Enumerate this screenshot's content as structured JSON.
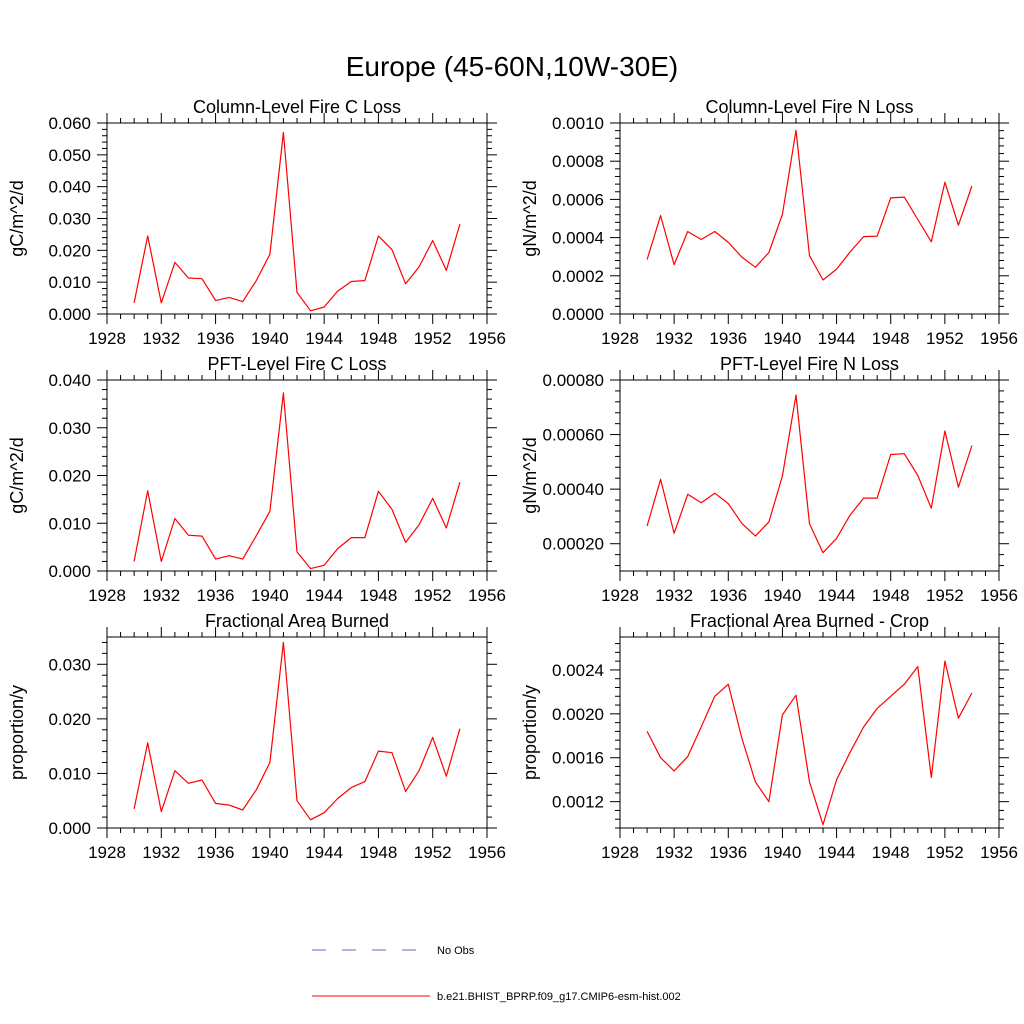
{
  "title": "Europe (45-60N,10W-30E)",
  "chart_data": [
    {
      "type": "line",
      "title": "Column-Level Fire C Loss",
      "ylabel": "gC/m^2/d",
      "xlabel": "",
      "xlim": [
        1928,
        1956
      ],
      "ylim": [
        0,
        0.06
      ],
      "xticks": [
        1928,
        1932,
        1936,
        1940,
        1944,
        1948,
        1952,
        1956
      ],
      "xtick_labels": [
        "1928",
        "1932",
        "1936",
        "1940",
        "1944",
        "1948",
        "1952",
        "1956"
      ],
      "yticks": [
        0,
        0.01,
        0.02,
        0.03,
        0.04,
        0.05,
        0.06
      ],
      "ytick_labels": [
        "0.000",
        "0.010",
        "0.020",
        "0.030",
        "0.040",
        "0.050",
        "0.060"
      ],
      "x": [
        1930,
        1931,
        1932,
        1933,
        1934,
        1935,
        1936,
        1937,
        1938,
        1939,
        1940,
        1941,
        1942,
        1943,
        1944,
        1945,
        1946,
        1947,
        1948,
        1949,
        1950,
        1951,
        1952,
        1953,
        1954
      ],
      "series": [
        {
          "name": "b.e21.BHIST_BPRP.f09_g17.CMIP6-esm-hist.002",
          "color": "#ff0000",
          "values": [
            0.0035,
            0.0245,
            0.0035,
            0.0162,
            0.0113,
            0.0111,
            0.0042,
            0.0052,
            0.0039,
            0.0105,
            0.0188,
            0.057,
            0.0068,
            0.001,
            0.0022,
            0.0072,
            0.0102,
            0.0105,
            0.0245,
            0.0202,
            0.0095,
            0.0148,
            0.0231,
            0.0137,
            0.0282
          ]
        }
      ]
    },
    {
      "type": "line",
      "title": "Column-Level Fire N Loss",
      "ylabel": "gN/m^2/d",
      "xlabel": "",
      "xlim": [
        1928,
        1956
      ],
      "ylim": [
        0,
        0.001
      ],
      "xticks": [
        1928,
        1932,
        1936,
        1940,
        1944,
        1948,
        1952,
        1956
      ],
      "xtick_labels": [
        "1928",
        "1932",
        "1936",
        "1940",
        "1944",
        "1948",
        "1952",
        "1956"
      ],
      "yticks": [
        0,
        0.0002,
        0.0004,
        0.0006,
        0.0008,
        0.001
      ],
      "ytick_labels": [
        "0.0000",
        "0.0002",
        "0.0004",
        "0.0006",
        "0.0008",
        "0.0010"
      ],
      "x": [
        1930,
        1931,
        1932,
        1933,
        1934,
        1935,
        1936,
        1937,
        1938,
        1939,
        1940,
        1941,
        1942,
        1943,
        1944,
        1945,
        1946,
        1947,
        1948,
        1949,
        1950,
        1951,
        1952,
        1953,
        1954
      ],
      "series": [
        {
          "name": "b.e21.BHIST_BPRP.f09_g17.CMIP6-esm-hist.002",
          "color": "#ff0000",
          "values": [
            0.000285,
            0.000515,
            0.000258,
            0.000432,
            0.00039,
            0.000432,
            0.000375,
            0.000298,
            0.000245,
            0.000322,
            0.000522,
            0.000962,
            0.000305,
            0.000178,
            0.000235,
            0.000325,
            0.000405,
            0.000408,
            0.000608,
            0.000612,
            0.000495,
            0.000378,
            0.00069,
            0.000465,
            0.00067
          ]
        }
      ]
    },
    {
      "type": "line",
      "title": "PFT-Level Fire C Loss",
      "ylabel": "gC/m^2/d",
      "xlabel": "",
      "xlim": [
        1928,
        1956
      ],
      "ylim": [
        0,
        0.04
      ],
      "xticks": [
        1928,
        1932,
        1936,
        1940,
        1944,
        1948,
        1952,
        1956
      ],
      "xtick_labels": [
        "1928",
        "1932",
        "1936",
        "1940",
        "1944",
        "1948",
        "1952",
        "1956"
      ],
      "yticks": [
        0,
        0.01,
        0.02,
        0.03,
        0.04
      ],
      "ytick_labels": [
        "0.000",
        "0.010",
        "0.020",
        "0.030",
        "0.040"
      ],
      "x": [
        1930,
        1931,
        1932,
        1933,
        1934,
        1935,
        1936,
        1937,
        1938,
        1939,
        1940,
        1941,
        1942,
        1943,
        1944,
        1945,
        1946,
        1947,
        1948,
        1949,
        1950,
        1951,
        1952,
        1953,
        1954
      ],
      "series": [
        {
          "name": "b.e21.BHIST_BPRP.f09_g17.CMIP6-esm-hist.002",
          "color": "#ff0000",
          "values": [
            0.002,
            0.0168,
            0.002,
            0.011,
            0.0075,
            0.0073,
            0.0025,
            0.0032,
            0.0025,
            0.0074,
            0.0125,
            0.0373,
            0.004,
            0.0005,
            0.0012,
            0.0047,
            0.007,
            0.007,
            0.0167,
            0.0129,
            0.006,
            0.0097,
            0.0152,
            0.009,
            0.0186
          ]
        }
      ]
    },
    {
      "type": "line",
      "title": "PFT-Level Fire N Loss",
      "ylabel": "gN/m^2/d",
      "xlabel": "",
      "xlim": [
        1928,
        1956
      ],
      "ylim": [
        0.0001,
        0.0008
      ],
      "xticks": [
        1928,
        1932,
        1936,
        1940,
        1944,
        1948,
        1952,
        1956
      ],
      "xtick_labels": [
        "1928",
        "1932",
        "1936",
        "1940",
        "1944",
        "1948",
        "1952",
        "1956"
      ],
      "yticks": [
        0.0002,
        0.0004,
        0.0006,
        0.0008
      ],
      "ytick_labels": [
        "0.00020",
        "0.00040",
        "0.00060",
        "0.00080"
      ],
      "x": [
        1930,
        1931,
        1932,
        1933,
        1934,
        1935,
        1936,
        1937,
        1938,
        1939,
        1940,
        1941,
        1942,
        1943,
        1944,
        1945,
        1946,
        1947,
        1948,
        1949,
        1950,
        1951,
        1952,
        1953,
        1954
      ],
      "series": [
        {
          "name": "b.e21.BHIST_BPRP.f09_g17.CMIP6-esm-hist.002",
          "color": "#ff0000",
          "values": [
            0.000265,
            0.000436,
            0.000238,
            0.000381,
            0.00035,
            0.000385,
            0.000347,
            0.000275,
            0.000228,
            0.00028,
            0.000448,
            0.000745,
            0.000273,
            0.000167,
            0.00022,
            0.000305,
            0.000367,
            0.000367,
            0.000527,
            0.00053,
            0.00045,
            0.00033,
            0.000613,
            0.000407,
            0.00056
          ]
        }
      ]
    },
    {
      "type": "line",
      "title": "Fractional Area Burned",
      "ylabel": "proportion/y",
      "xlabel": "",
      "xlim": [
        1928,
        1956
      ],
      "ylim": [
        0,
        0.035
      ],
      "xticks": [
        1928,
        1932,
        1936,
        1940,
        1944,
        1948,
        1952,
        1956
      ],
      "xtick_labels": [
        "1928",
        "1932",
        "1936",
        "1940",
        "1944",
        "1948",
        "1952",
        "1956"
      ],
      "yticks": [
        0,
        0.01,
        0.02,
        0.03
      ],
      "ytick_labels": [
        "0.000",
        "0.010",
        "0.020",
        "0.030"
      ],
      "x": [
        1930,
        1931,
        1932,
        1933,
        1934,
        1935,
        1936,
        1937,
        1938,
        1939,
        1940,
        1941,
        1942,
        1943,
        1944,
        1945,
        1946,
        1947,
        1948,
        1949,
        1950,
        1951,
        1952,
        1953,
        1954
      ],
      "series": [
        {
          "name": "b.e21.BHIST_BPRP.f09_g17.CMIP6-esm-hist.002",
          "color": "#ff0000",
          "values": [
            0.0035,
            0.0156,
            0.003,
            0.0105,
            0.0082,
            0.0088,
            0.0045,
            0.0042,
            0.0033,
            0.007,
            0.012,
            0.034,
            0.005,
            0.0015,
            0.0028,
            0.0054,
            0.0074,
            0.0085,
            0.0141,
            0.0138,
            0.0067,
            0.0105,
            0.0166,
            0.0095,
            0.0182
          ]
        }
      ]
    },
    {
      "type": "line",
      "title": "Fractional Area Burned - Crop",
      "ylabel": "proportion/y",
      "xlabel": "",
      "xlim": [
        1928,
        1956
      ],
      "ylim": [
        0.00096,
        0.0027
      ],
      "xticks": [
        1928,
        1932,
        1936,
        1940,
        1944,
        1948,
        1952,
        1956
      ],
      "xtick_labels": [
        "1928",
        "1932",
        "1936",
        "1940",
        "1944",
        "1948",
        "1952",
        "1956"
      ],
      "yticks": [
        0.0012,
        0.0016,
        0.002,
        0.0024
      ],
      "ytick_labels": [
        "0.0012",
        "0.0016",
        "0.0020",
        "0.0024"
      ],
      "x": [
        1930,
        1931,
        1932,
        1933,
        1934,
        1935,
        1936,
        1937,
        1938,
        1939,
        1940,
        1941,
        1942,
        1943,
        1944,
        1945,
        1946,
        1947,
        1948,
        1949,
        1950,
        1951,
        1952,
        1953,
        1954
      ],
      "series": [
        {
          "name": "b.e21.BHIST_BPRP.f09_g17.CMIP6-esm-hist.002",
          "color": "#ff0000",
          "values": [
            0.00184,
            0.0016,
            0.00148,
            0.00161,
            0.00188,
            0.00216,
            0.00227,
            0.00178,
            0.00138,
            0.0012,
            0.00199,
            0.00217,
            0.00138,
            0.00099,
            0.0014,
            0.00165,
            0.00188,
            0.00205,
            0.00216,
            0.00227,
            0.00243,
            0.00142,
            0.00248,
            0.00196,
            0.00219
          ]
        }
      ]
    }
  ],
  "legend": [
    {
      "label": "No Obs",
      "color": "#6666cc",
      "style": "dashed"
    },
    {
      "label": "b.e21.BHIST_BPRP.f09_g17.CMIP6-esm-hist.002",
      "color": "#ff0000",
      "style": "solid"
    }
  ]
}
